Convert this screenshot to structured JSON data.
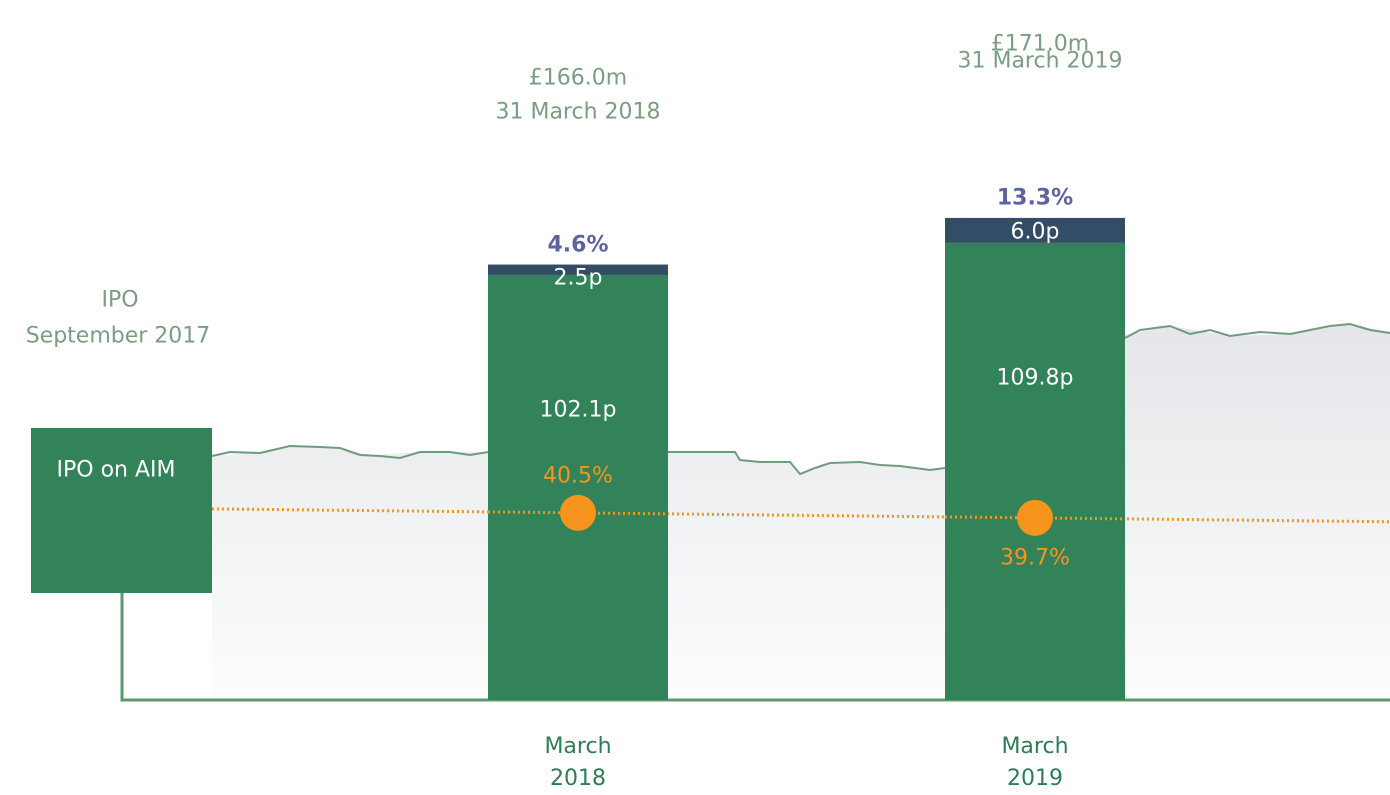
{
  "chart_data": {
    "type": "bar",
    "stacked": true,
    "categories": [
      "March 2018",
      "March 2019"
    ],
    "series": [
      {
        "color": "#32835a",
        "values": [
          102.1,
          109.8
        ],
        "value_labels": [
          "102.1p",
          "109.8p"
        ]
      },
      {
        "color": "#334d66",
        "values": [
          2.5,
          6.0
        ],
        "value_labels": [
          "2.5p",
          "6.0p"
        ]
      }
    ],
    "total_labels": {
      "color": "#5e62a0",
      "values": [
        4.6,
        13.3
      ],
      "value_labels": [
        "4.6%",
        "13.3%"
      ]
    },
    "markers": {
      "color": "#f7941d",
      "values": [
        40.5,
        39.7
      ],
      "value_labels": [
        "40.5%",
        "39.7%"
      ]
    },
    "annotations": [
      {
        "title": "£166.0m",
        "subtitle": "31 March 2018"
      },
      {
        "title": "£171.0m",
        "subtitle": "31 March 2019"
      }
    ],
    "ipo": {
      "label": "IPO",
      "date": "September 2017",
      "box": "IPO on AIM"
    }
  }
}
